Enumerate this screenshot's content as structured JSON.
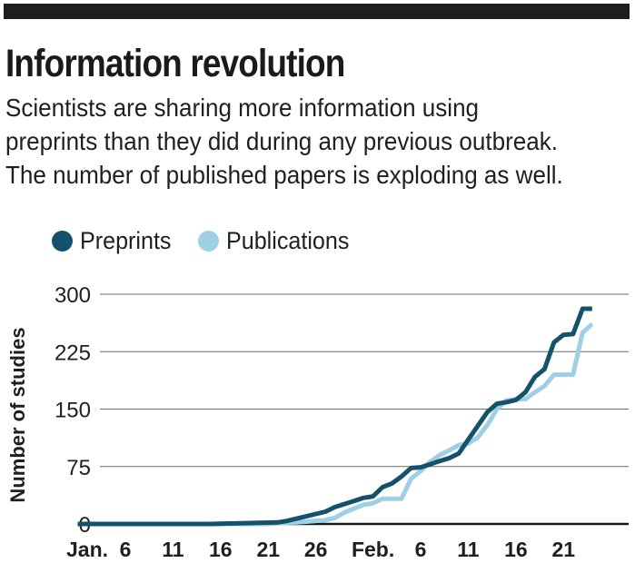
{
  "header": {
    "title": "Information revolution",
    "subtitle_lines": [
      "Scientists are sharing more information using",
      "preprints than they did during any previous outbreak.",
      "The number of published papers is exploding as well."
    ]
  },
  "colors": {
    "preprints": "#14516b",
    "publications": "#9ecfe5",
    "grid": "#6b6b6b",
    "axis": "#1a1a1a",
    "rule": "#1e1e1e"
  },
  "chart_data": {
    "type": "line",
    "title": "Information revolution",
    "ylabel": "Number of studies",
    "xlabel": "",
    "ylim": [
      0,
      300
    ],
    "yticks": [
      0,
      75,
      150,
      225,
      300
    ],
    "xlim": [
      1,
      56
    ],
    "xticks": [
      {
        "label": "Jan.",
        "day": 2
      },
      {
        "label": "6",
        "day": 6
      },
      {
        "label": "11",
        "day": 11
      },
      {
        "label": "16",
        "day": 16
      },
      {
        "label": "21",
        "day": 21
      },
      {
        "label": "26",
        "day": 26
      },
      {
        "label": "Feb.",
        "day": 32
      },
      {
        "label": "6",
        "day": 37
      },
      {
        "label": "11",
        "day": 42
      },
      {
        "label": "16",
        "day": 47
      },
      {
        "label": "21",
        "day": 52
      }
    ],
    "grid": true,
    "legend_position": "top-left",
    "series": [
      {
        "name": "Preprints",
        "color": "#14516b",
        "points": [
          [
            1,
            0
          ],
          [
            15,
            0
          ],
          [
            18,
            1
          ],
          [
            22,
            2
          ],
          [
            23,
            4
          ],
          [
            24,
            7
          ],
          [
            25,
            10
          ],
          [
            26,
            13
          ],
          [
            27,
            16
          ],
          [
            28,
            22
          ],
          [
            29,
            26
          ],
          [
            30,
            30
          ],
          [
            31,
            34
          ],
          [
            32,
            36
          ],
          [
            33,
            48
          ],
          [
            34,
            53
          ],
          [
            35,
            62
          ],
          [
            36,
            73
          ],
          [
            37,
            74
          ],
          [
            38,
            78
          ],
          [
            39,
            82
          ],
          [
            40,
            86
          ],
          [
            41,
            92
          ],
          [
            42,
            110
          ],
          [
            43,
            128
          ],
          [
            44,
            146
          ],
          [
            45,
            157
          ],
          [
            46,
            159
          ],
          [
            47,
            162
          ],
          [
            48,
            172
          ],
          [
            49,
            192
          ],
          [
            50,
            202
          ],
          [
            51,
            237
          ],
          [
            52,
            247
          ],
          [
            53,
            248
          ],
          [
            54,
            281
          ],
          [
            55,
            281
          ]
        ]
      },
      {
        "name": "Publications",
        "color": "#9ecfe5",
        "points": [
          [
            1,
            0
          ],
          [
            21,
            0
          ],
          [
            22,
            1
          ],
          [
            24,
            2
          ],
          [
            25,
            3
          ],
          [
            26,
            4
          ],
          [
            27,
            5
          ],
          [
            28,
            8
          ],
          [
            29,
            15
          ],
          [
            30,
            20
          ],
          [
            31,
            25
          ],
          [
            32,
            27
          ],
          [
            33,
            33
          ],
          [
            34,
            33
          ],
          [
            35,
            33
          ],
          [
            36,
            59
          ],
          [
            37,
            69
          ],
          [
            38,
            81
          ],
          [
            39,
            90
          ],
          [
            40,
            96
          ],
          [
            41,
            103
          ],
          [
            42,
            105
          ],
          [
            43,
            113
          ],
          [
            44,
            129
          ],
          [
            45,
            150
          ],
          [
            46,
            161
          ],
          [
            47,
            163
          ],
          [
            48,
            163
          ],
          [
            49,
            172
          ],
          [
            50,
            180
          ],
          [
            51,
            195
          ],
          [
            52,
            195
          ],
          [
            53,
            195
          ],
          [
            54,
            250
          ],
          [
            55,
            261
          ]
        ]
      }
    ]
  }
}
